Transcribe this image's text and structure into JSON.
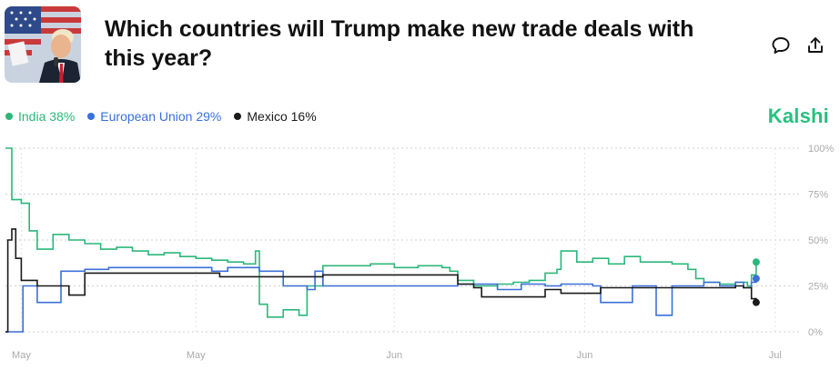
{
  "header": {
    "title": "Which countries will Trump make new trade deals with this year?"
  },
  "brand": "Kalshi",
  "legend": [
    {
      "label": "India 38%",
      "color": "#2bb77a"
    },
    {
      "label": "European Union 29%",
      "color": "#3b6fd8"
    },
    {
      "label": "Mexico 16%",
      "color": "#1a1a1a"
    }
  ],
  "chart_data": {
    "type": "line",
    "x_ticks": [
      "May",
      "May",
      "Jun",
      "Jun",
      "Jul"
    ],
    "y_ticks": [
      "100%",
      "75%",
      "50%",
      "25%",
      "0%"
    ],
    "ylim": [
      0,
      100
    ],
    "xlim": [
      0,
      100
    ],
    "grid": true,
    "legend_position": "top-left",
    "series": [
      {
        "name": "India",
        "color": "#2bb77a",
        "points": [
          [
            0,
            100
          ],
          [
            0.8,
            72
          ],
          [
            2,
            70
          ],
          [
            3,
            55
          ],
          [
            4,
            45
          ],
          [
            6,
            53
          ],
          [
            8,
            50
          ],
          [
            10,
            48
          ],
          [
            12,
            45
          ],
          [
            14,
            46
          ],
          [
            16,
            44
          ],
          [
            18,
            42
          ],
          [
            20,
            43
          ],
          [
            22,
            41
          ],
          [
            24,
            40
          ],
          [
            26,
            39
          ],
          [
            28,
            38
          ],
          [
            30,
            37
          ],
          [
            31.5,
            44
          ],
          [
            32,
            15
          ],
          [
            33,
            8
          ],
          [
            35,
            12
          ],
          [
            37,
            9
          ],
          [
            38,
            25
          ],
          [
            40,
            36
          ],
          [
            43,
            36
          ],
          [
            46,
            37
          ],
          [
            49,
            35
          ],
          [
            52,
            36
          ],
          [
            55,
            35
          ],
          [
            56,
            33
          ],
          [
            57,
            28
          ],
          [
            59,
            25
          ],
          [
            62,
            26
          ],
          [
            64,
            27
          ],
          [
            66,
            28
          ],
          [
            68,
            32
          ],
          [
            69.5,
            34
          ],
          [
            70,
            44
          ],
          [
            72,
            38
          ],
          [
            74,
            40
          ],
          [
            76,
            37
          ],
          [
            78,
            41
          ],
          [
            80,
            38
          ],
          [
            82,
            38
          ],
          [
            84,
            37
          ],
          [
            86,
            34
          ],
          [
            87,
            29
          ],
          [
            88,
            27
          ],
          [
            90,
            26
          ],
          [
            92,
            27
          ],
          [
            93.5,
            25
          ],
          [
            94,
            31
          ],
          [
            94.6,
            38
          ]
        ]
      },
      {
        "name": "European Union",
        "color": "#3b6fd8",
        "points": [
          [
            0,
            0
          ],
          [
            1.5,
            0
          ],
          [
            2.2,
            25
          ],
          [
            3,
            25
          ],
          [
            4,
            16
          ],
          [
            6,
            16
          ],
          [
            7,
            33
          ],
          [
            10,
            34
          ],
          [
            13,
            35
          ],
          [
            20,
            35
          ],
          [
            25,
            35
          ],
          [
            26,
            33
          ],
          [
            28,
            35
          ],
          [
            31,
            35
          ],
          [
            32,
            33
          ],
          [
            34,
            33
          ],
          [
            35,
            25
          ],
          [
            38,
            23
          ],
          [
            39,
            33
          ],
          [
            40,
            25
          ],
          [
            43,
            25
          ],
          [
            50,
            25
          ],
          [
            55,
            25
          ],
          [
            57,
            26
          ],
          [
            61,
            26
          ],
          [
            62,
            23
          ],
          [
            65,
            26
          ],
          [
            68,
            25
          ],
          [
            70,
            26
          ],
          [
            73,
            26
          ],
          [
            74,
            25
          ],
          [
            75,
            16
          ],
          [
            78,
            16
          ],
          [
            79,
            25
          ],
          [
            81,
            25
          ],
          [
            82,
            9
          ],
          [
            83,
            9
          ],
          [
            84,
            25
          ],
          [
            86,
            25
          ],
          [
            88,
            27
          ],
          [
            90,
            25
          ],
          [
            92,
            27
          ],
          [
            93,
            24
          ],
          [
            94,
            27
          ],
          [
            94.6,
            29
          ]
        ]
      },
      {
        "name": "Mexico",
        "color": "#1a1a1a",
        "points": [
          [
            0,
            0
          ],
          [
            0.3,
            50
          ],
          [
            0.8,
            56
          ],
          [
            1.3,
            40
          ],
          [
            2,
            28
          ],
          [
            3,
            28
          ],
          [
            4,
            25
          ],
          [
            6,
            25
          ],
          [
            8,
            20
          ],
          [
            9,
            20
          ],
          [
            10,
            32
          ],
          [
            14,
            32
          ],
          [
            20,
            32
          ],
          [
            25,
            32
          ],
          [
            27,
            30
          ],
          [
            30,
            30
          ],
          [
            35,
            30
          ],
          [
            38,
            30
          ],
          [
            40,
            31
          ],
          [
            45,
            31
          ],
          [
            50,
            31
          ],
          [
            55,
            31
          ],
          [
            57,
            26
          ],
          [
            59,
            24
          ],
          [
            60,
            19
          ],
          [
            62,
            19
          ],
          [
            65,
            19
          ],
          [
            68,
            23
          ],
          [
            70,
            21
          ],
          [
            72,
            21
          ],
          [
            74,
            21
          ],
          [
            75,
            24
          ],
          [
            80,
            24
          ],
          [
            85,
            24
          ],
          [
            90,
            24
          ],
          [
            92,
            25
          ],
          [
            93,
            24
          ],
          [
            94,
            18
          ],
          [
            94.6,
            16
          ]
        ]
      }
    ]
  }
}
